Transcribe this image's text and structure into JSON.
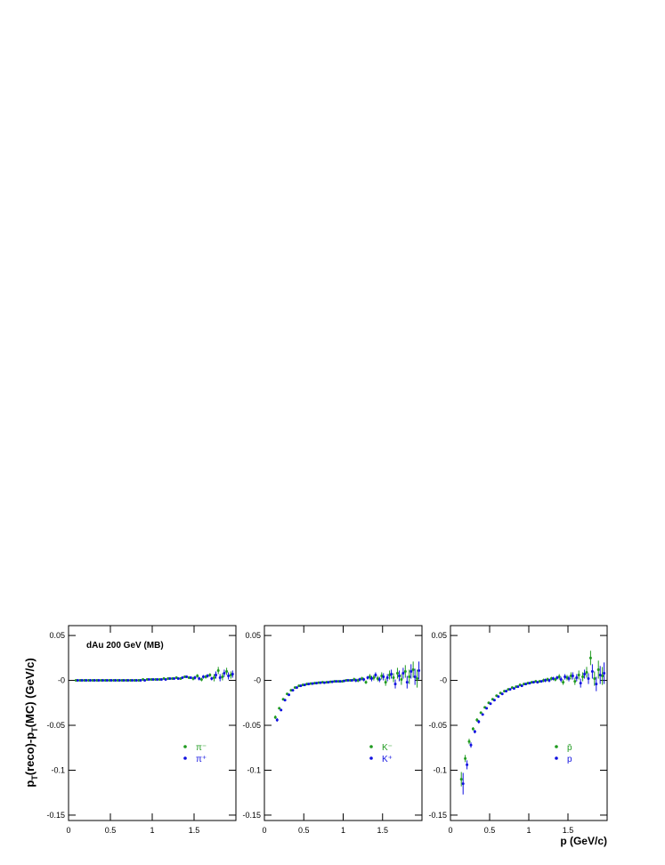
{
  "chart_data": [
    {
      "type": "scatter",
      "annotation": "dAu 200 GeV (MB)",
      "ylabel": [
        "p",
        "T",
        "(reco)-p",
        "T",
        "(MC) (GeV/c)"
      ],
      "xlim": [
        0,
        2
      ],
      "ylim": [
        -0.156,
        0.061
      ],
      "xticks": [
        0,
        0.5,
        1,
        1.5
      ],
      "yticks": [
        0.05,
        {
          "value": 0,
          "label": "-0"
        },
        -0.05,
        -0.1,
        -0.15
      ],
      "legend": "lower right",
      "x": [
        0.1,
        0.15,
        0.2,
        0.25,
        0.3,
        0.35,
        0.4,
        0.45,
        0.5,
        0.55,
        0.6,
        0.65,
        0.7,
        0.75,
        0.8,
        0.85,
        0.9,
        0.95,
        1.0,
        1.05,
        1.1,
        1.15,
        1.2,
        1.25,
        1.3,
        1.35,
        1.4,
        1.45,
        1.5,
        1.55,
        1.6,
        1.65,
        1.7,
        1.75,
        1.8,
        1.85,
        1.9,
        1.95
      ],
      "series": [
        {
          "name": "π⁻",
          "color": "#1f9a1f",
          "values": [
            0,
            0,
            0,
            0,
            0,
            0,
            0,
            0,
            0,
            0,
            0,
            0,
            0,
            0,
            0,
            0,
            0.001,
            0.001,
            0.001,
            0.001,
            0.001,
            0.002,
            0.002,
            0.002,
            0.003,
            0.002,
            0.004,
            0.003,
            0.002,
            0.005,
            0.001,
            0.004,
            0.006,
            0.003,
            0.011,
            0.004,
            0.01,
            0.006
          ],
          "errors": [
            0.0005,
            0.0005,
            0.0005,
            0.0005,
            0.0005,
            0.0005,
            0.0005,
            0.0005,
            0.0005,
            0.0005,
            0.0005,
            0.0005,
            0.0005,
            0.0005,
            0.0005,
            0.0005,
            0.0005,
            0.0005,
            0.0005,
            0.0005,
            0.001,
            0.001,
            0.001,
            0.001,
            0.001,
            0.001,
            0.001,
            0.001,
            0.002,
            0.002,
            0.002,
            0.002,
            0.002,
            0.004,
            0.004,
            0.004,
            0.004,
            0.004
          ]
        },
        {
          "name": "π⁺",
          "color": "#1010e0",
          "values": [
            0,
            0,
            0,
            0,
            0,
            0,
            0,
            0,
            0,
            0,
            0,
            0,
            0,
            0,
            0,
            0,
            0,
            0.001,
            0.001,
            0.001,
            0.001,
            0.001,
            0.002,
            0.002,
            0.002,
            0.003,
            0.004,
            0.003,
            0.003,
            0.002,
            0.004,
            0.005,
            0.002,
            0.006,
            0.003,
            0.008,
            0.005,
            0.007
          ],
          "errors": [
            0.0005,
            0.0005,
            0.0005,
            0.0005,
            0.0005,
            0.0005,
            0.0005,
            0.0005,
            0.0005,
            0.0005,
            0.0005,
            0.0005,
            0.0005,
            0.0005,
            0.0005,
            0.0005,
            0.0005,
            0.0005,
            0.0005,
            0.0005,
            0.001,
            0.001,
            0.001,
            0.001,
            0.001,
            0.001,
            0.001,
            0.001,
            0.002,
            0.002,
            0.002,
            0.002,
            0.002,
            0.004,
            0.004,
            0.004,
            0.004,
            0.004
          ]
        }
      ]
    },
    {
      "type": "scatter",
      "xlim": [
        0,
        2
      ],
      "ylim": [
        -0.156,
        0.061
      ],
      "xticks": [
        0,
        0.5,
        1,
        1.5
      ],
      "yticks": [
        0.05,
        {
          "value": 0,
          "label": "-0"
        },
        -0.05,
        -0.1,
        -0.15
      ],
      "legend": "lower right",
      "x": [
        0.15,
        0.2,
        0.25,
        0.3,
        0.35,
        0.4,
        0.45,
        0.5,
        0.55,
        0.6,
        0.65,
        0.7,
        0.75,
        0.8,
        0.85,
        0.9,
        0.95,
        1.0,
        1.05,
        1.1,
        1.15,
        1.2,
        1.25,
        1.3,
        1.35,
        1.4,
        1.45,
        1.5,
        1.55,
        1.6,
        1.65,
        1.7,
        1.75,
        1.8,
        1.85,
        1.9,
        1.95
      ],
      "series": [
        {
          "name": "K⁻",
          "color": "#1f9a1f",
          "values": [
            -0.041,
            -0.031,
            -0.021,
            -0.015,
            -0.011,
            -0.008,
            -0.006,
            -0.005,
            -0.004,
            -0.0035,
            -0.003,
            -0.0025,
            -0.002,
            -0.002,
            -0.0015,
            -0.001,
            -0.001,
            -0.001,
            0,
            0,
            0.001,
            0,
            0.002,
            -0.002,
            0.004,
            0.003,
            0.002,
            0.005,
            -0.002,
            0.006,
            0.003,
            0.008,
            0.001,
            0.01,
            0.004,
            0.012,
            0.002
          ],
          "errors": [
            0.002,
            0.001,
            0.001,
            0.001,
            0.001,
            0.001,
            0.001,
            0.001,
            0.001,
            0.001,
            0.001,
            0.001,
            0.001,
            0.001,
            0.001,
            0.001,
            0.001,
            0.001,
            0.001,
            0.001,
            0.002,
            0.002,
            0.002,
            0.002,
            0.003,
            0.003,
            0.003,
            0.004,
            0.004,
            0.005,
            0.005,
            0.006,
            0.006,
            0.007,
            0.008,
            0.009,
            0.01
          ]
        },
        {
          "name": "K⁺",
          "color": "#1010e0",
          "values": [
            -0.044,
            -0.033,
            -0.022,
            -0.016,
            -0.011,
            -0.008,
            -0.006,
            -0.005,
            -0.004,
            -0.0035,
            -0.003,
            -0.0025,
            -0.0025,
            -0.002,
            -0.0015,
            -0.001,
            -0.001,
            -0.0005,
            0,
            0,
            0,
            0.001,
            0.001,
            0.003,
            0.002,
            0.006,
            0.001,
            0.004,
            0.003,
            0.007,
            -0.004,
            0.005,
            0.008,
            -0.002,
            0.01,
            0.004,
            0.011
          ],
          "errors": [
            0.002,
            0.001,
            0.001,
            0.001,
            0.001,
            0.001,
            0.001,
            0.001,
            0.001,
            0.001,
            0.001,
            0.001,
            0.001,
            0.001,
            0.001,
            0.001,
            0.001,
            0.001,
            0.001,
            0.001,
            0.002,
            0.002,
            0.002,
            0.002,
            0.003,
            0.003,
            0.003,
            0.004,
            0.004,
            0.005,
            0.005,
            0.006,
            0.006,
            0.007,
            0.008,
            0.009,
            0.01
          ]
        }
      ]
    },
    {
      "type": "scatter",
      "xlabel": "p (GeV/c)",
      "xlim": [
        0,
        2
      ],
      "ylim": [
        -0.156,
        0.061
      ],
      "xticks": [
        0,
        0.5,
        1,
        1.5
      ],
      "yticks": [
        0.05,
        {
          "value": 0,
          "label": "-0"
        },
        -0.05,
        -0.1,
        -0.15
      ],
      "legend": "lower right",
      "x": [
        0.15,
        0.2,
        0.25,
        0.3,
        0.35,
        0.4,
        0.45,
        0.5,
        0.55,
        0.6,
        0.65,
        0.7,
        0.75,
        0.8,
        0.85,
        0.9,
        0.95,
        1.0,
        1.05,
        1.1,
        1.15,
        1.2,
        1.25,
        1.3,
        1.35,
        1.4,
        1.45,
        1.5,
        1.55,
        1.6,
        1.65,
        1.7,
        1.75,
        1.8,
        1.85,
        1.9,
        1.95
      ],
      "series": [
        {
          "name": "p̄",
          "color": "#1f9a1f",
          "values": [
            -0.11,
            -0.087,
            -0.068,
            -0.054,
            -0.044,
            -0.036,
            -0.03,
            -0.025,
            -0.021,
            -0.017,
            -0.014,
            -0.012,
            -0.01,
            -0.008,
            -0.007,
            -0.005,
            -0.004,
            -0.003,
            -0.002,
            -0.001,
            -0.001,
            0,
            0.001,
            0.002,
            0.001,
            0.004,
            -0.002,
            0.003,
            0.005,
            -0.001,
            0.006,
            0.004,
            0.009,
            0.025,
            0.002,
            0.012,
            0.005
          ],
          "errors": [
            0.008,
            0.004,
            0.003,
            0.002,
            0.002,
            0.001,
            0.001,
            0.001,
            0.001,
            0.001,
            0.001,
            0.001,
            0.001,
            0.001,
            0.001,
            0.001,
            0.001,
            0.001,
            0.001,
            0.001,
            0.001,
            0.002,
            0.002,
            0.002,
            0.002,
            0.003,
            0.003,
            0.003,
            0.004,
            0.004,
            0.005,
            0.005,
            0.006,
            0.008,
            0.008,
            0.01,
            0.01
          ]
        },
        {
          "name": "p",
          "color": "#1010e0",
          "values": [
            -0.115,
            -0.094,
            -0.072,
            -0.057,
            -0.046,
            -0.038,
            -0.031,
            -0.026,
            -0.022,
            -0.018,
            -0.015,
            -0.012,
            -0.01,
            -0.009,
            -0.007,
            -0.006,
            -0.004,
            -0.003,
            -0.002,
            -0.002,
            -0.001,
            0,
            0,
            0.002,
            0.003,
            0.001,
            0.004,
            0.002,
            0.005,
            0.003,
            -0.003,
            0.007,
            0.002,
            0.01,
            -0.004,
            0.006,
            0.008
          ],
          "errors": [
            0.012,
            0.005,
            0.003,
            0.002,
            0.002,
            0.001,
            0.001,
            0.001,
            0.001,
            0.001,
            0.001,
            0.001,
            0.001,
            0.001,
            0.001,
            0.001,
            0.001,
            0.001,
            0.001,
            0.001,
            0.001,
            0.002,
            0.002,
            0.002,
            0.002,
            0.003,
            0.003,
            0.003,
            0.004,
            0.004,
            0.005,
            0.005,
            0.006,
            0.008,
            0.008,
            0.01,
            0.012
          ]
        }
      ]
    }
  ]
}
